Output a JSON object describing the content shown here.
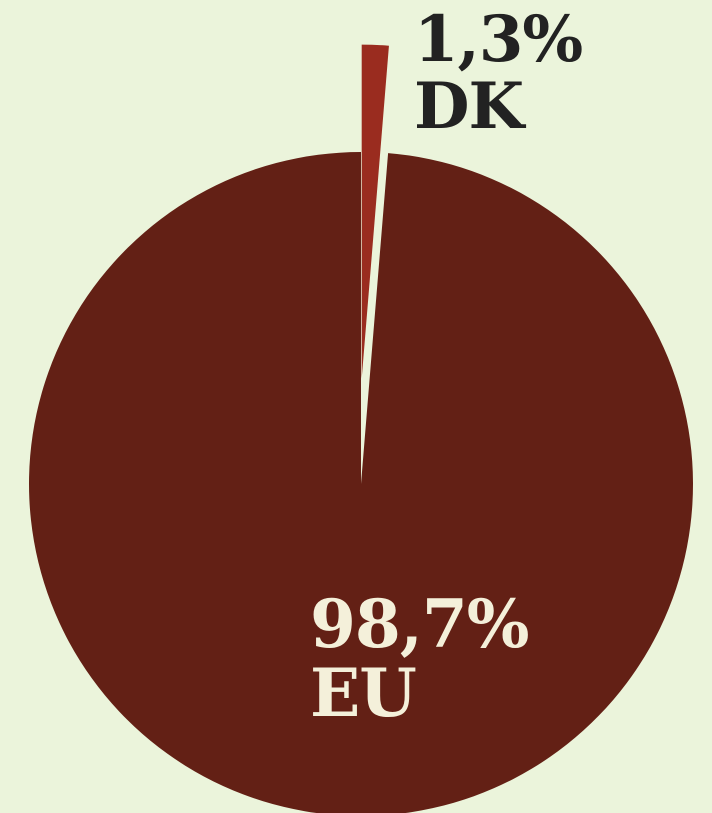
{
  "chart_data": {
    "type": "pie",
    "slices": [
      {
        "label": "DK",
        "value_label": "1,3%",
        "value": 1.3,
        "color": "#9a2c1f",
        "exploded": true,
        "label_color": "#222222"
      },
      {
        "label": "EU",
        "value_label": "98,7%",
        "value": 98.7,
        "color": "#632015",
        "exploded": false,
        "label_color": "#f4f0da"
      }
    ],
    "start_angle_deg": 0,
    "direction": "clockwise",
    "background": "#ebf4db"
  }
}
